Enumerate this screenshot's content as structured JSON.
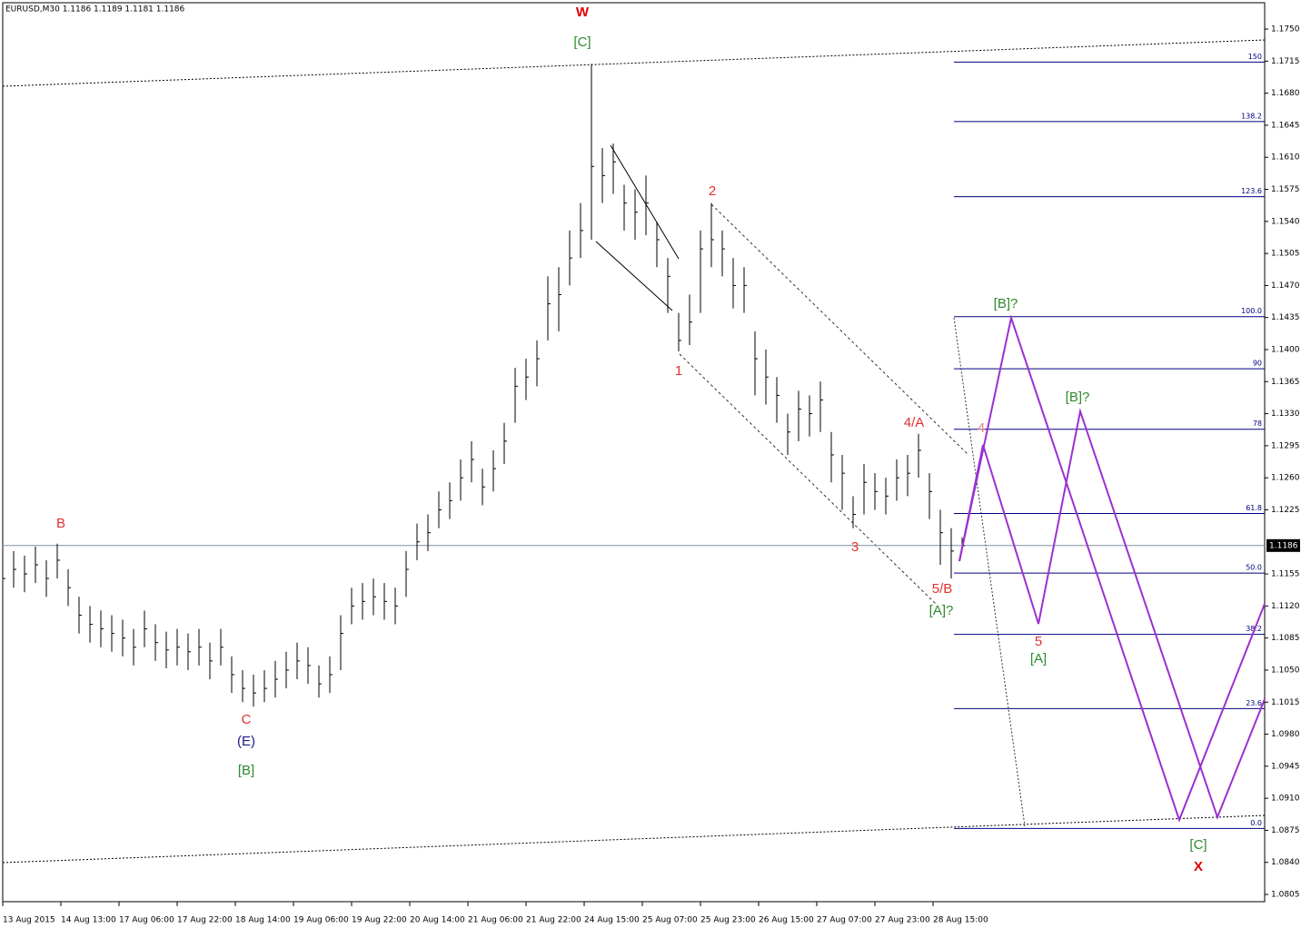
{
  "chart_data": {
    "type": "ohlc",
    "title": "EURUSD,M30  1.1186 1.1189 1.1181 1.1186",
    "color": "#000000",
    "background": "#ffffff",
    "xlim": [
      0,
      694.5
    ],
    "ylim": [
      1.07971,
      1.17778
    ],
    "xticks": [
      {
        "value": 0,
        "label": "13 Aug 2015"
      },
      {
        "value": 32,
        "label": "14 Aug 13:00"
      },
      {
        "value": 64,
        "label": "17 Aug 06:00"
      },
      {
        "value": 96,
        "label": "17 Aug 22:00"
      },
      {
        "value": 128,
        "label": "18 Aug 14:00"
      },
      {
        "value": 160,
        "label": "19 Aug 06:00"
      },
      {
        "value": 192,
        "label": "19 Aug 22:00"
      },
      {
        "value": 224,
        "label": "20 Aug 14:00"
      },
      {
        "value": 256,
        "label": "21 Aug 06:00"
      },
      {
        "value": 288,
        "label": "21 Aug 22:00"
      },
      {
        "value": 320,
        "label": "24 Aug 15:00"
      },
      {
        "value": 352,
        "label": "25 Aug 07:00"
      },
      {
        "value": 384,
        "label": "25 Aug 23:00"
      },
      {
        "value": 416,
        "label": "26 Aug 15:00"
      },
      {
        "value": 448,
        "label": "27 Aug 07:00"
      },
      {
        "value": 480,
        "label": "27 Aug 23:00"
      },
      {
        "value": 512,
        "label": "28 Aug 15:00"
      }
    ],
    "yticks": [
      {
        "value": 1.175,
        "label": "1.1750"
      },
      {
        "value": 1.1715,
        "label": "1.1715"
      },
      {
        "value": 1.168,
        "label": "1.1680"
      },
      {
        "value": 1.1645,
        "label": "1.1645"
      },
      {
        "value": 1.161,
        "label": "1.1610"
      },
      {
        "value": 1.1575,
        "label": "1.1575"
      },
      {
        "value": 1.154,
        "label": "1.1540"
      },
      {
        "value": 1.1505,
        "label": "1.1505"
      },
      {
        "value": 1.147,
        "label": "1.1470"
      },
      {
        "value": 1.1435,
        "label": "1.1435"
      },
      {
        "value": 1.14,
        "label": "1.1400"
      },
      {
        "value": 1.1365,
        "label": "1.1365"
      },
      {
        "value": 1.133,
        "label": "1.1330"
      },
      {
        "value": 1.1295,
        "label": "1.1295"
      },
      {
        "value": 1.126,
        "label": "1.1260"
      },
      {
        "value": 1.1225,
        "label": "1.1225"
      },
      {
        "value": 1.1155,
        "label": "1.1155"
      },
      {
        "value": 1.112,
        "label": "1.1120"
      },
      {
        "value": 1.1085,
        "label": "1.1085"
      },
      {
        "value": 1.105,
        "label": "1.1050"
      },
      {
        "value": 1.1015,
        "label": "1.1015"
      },
      {
        "value": 1.098,
        "label": "1.0980"
      },
      {
        "value": 1.0945,
        "label": "1.0945"
      },
      {
        "value": 1.091,
        "label": "1.0910"
      },
      {
        "value": 1.0875,
        "label": "1.0875"
      },
      {
        "value": 1.084,
        "label": "1.0840"
      },
      {
        "value": 1.0805,
        "label": "1.0805"
      }
    ],
    "last_price": 1.1186,
    "x": [
      0,
      6,
      12,
      18,
      24,
      30,
      36,
      42,
      48,
      54,
      60,
      66,
      72,
      78,
      84,
      90,
      96,
      102,
      108,
      114,
      120,
      126,
      132,
      138,
      144,
      150,
      156,
      162,
      168,
      174,
      180,
      186,
      192,
      198,
      204,
      210,
      216,
      222,
      228,
      234,
      240,
      246,
      252,
      258,
      264,
      270,
      276,
      282,
      288,
      294,
      300,
      306,
      312,
      318,
      324,
      330,
      336,
      342,
      348,
      354,
      360,
      366,
      372,
      378,
      384,
      390,
      396,
      402,
      408,
      414,
      420,
      426,
      432,
      438,
      444,
      450,
      456,
      462,
      468,
      474,
      480,
      486,
      492,
      498,
      504,
      510,
      516,
      522,
      528
    ],
    "high": [
      1.117,
      1.118,
      1.1175,
      1.1185,
      1.117,
      1.1188,
      1.116,
      1.113,
      1.112,
      1.1115,
      1.111,
      1.1105,
      1.1095,
      1.1115,
      1.11,
      1.1092,
      1.1095,
      1.109,
      1.1095,
      1.108,
      1.1095,
      1.1065,
      1.105,
      1.1045,
      1.105,
      1.106,
      1.107,
      1.108,
      1.1075,
      1.1055,
      1.1065,
      1.111,
      1.114,
      1.1145,
      1.115,
      1.1145,
      1.114,
      1.118,
      1.121,
      1.122,
      1.1245,
      1.1255,
      1.128,
      1.13,
      1.127,
      1.129,
      1.132,
      1.138,
      1.139,
      1.141,
      1.148,
      1.149,
      1.153,
      1.156,
      1.1712,
      1.162,
      1.1625,
      1.158,
      1.1575,
      1.159,
      1.154,
      1.15,
      1.144,
      1.146,
      1.153,
      1.156,
      1.153,
      1.15,
      1.149,
      1.142,
      1.14,
      1.137,
      1.133,
      1.1355,
      1.135,
      1.1365,
      1.131,
      1.1285,
      1.124,
      1.1275,
      1.1265,
      1.126,
      1.128,
      1.1285,
      1.1308,
      1.1265,
      1.1225,
      1.1205,
      1.1195
    ],
    "low": [
      1.113,
      1.114,
      1.1135,
      1.1145,
      1.113,
      1.115,
      1.112,
      1.109,
      1.108,
      1.1075,
      1.107,
      1.1065,
      1.1055,
      1.1075,
      1.106,
      1.1052,
      1.1055,
      1.105,
      1.1055,
      1.104,
      1.1055,
      1.1025,
      1.1015,
      1.101,
      1.1015,
      1.102,
      1.103,
      1.104,
      1.1035,
      1.102,
      1.1025,
      1.105,
      1.11,
      1.1105,
      1.111,
      1.1105,
      1.11,
      1.113,
      1.117,
      1.118,
      1.1205,
      1.1215,
      1.1235,
      1.1255,
      1.123,
      1.1245,
      1.1275,
      1.132,
      1.1345,
      1.136,
      1.141,
      1.142,
      1.147,
      1.15,
      1.152,
      1.156,
      1.157,
      1.153,
      1.152,
      1.1525,
      1.149,
      1.144,
      1.1398,
      1.1405,
      1.144,
      1.149,
      1.148,
      1.1445,
      1.144,
      1.135,
      1.134,
      1.132,
      1.1285,
      1.13,
      1.1305,
      1.131,
      1.1255,
      1.1225,
      1.1205,
      1.122,
      1.1225,
      1.122,
      1.1235,
      1.124,
      1.126,
      1.1215,
      1.1165,
      1.115,
      1.1181
    ],
    "close": [
      1.115,
      1.116,
      1.1155,
      1.1165,
      1.115,
      1.117,
      1.114,
      1.111,
      1.11,
      1.1095,
      1.109,
      1.1085,
      1.1075,
      1.1095,
      1.108,
      1.1072,
      1.1075,
      1.107,
      1.1075,
      1.106,
      1.1075,
      1.1045,
      1.103,
      1.1025,
      1.103,
      1.104,
      1.105,
      1.106,
      1.1055,
      1.1035,
      1.1045,
      1.109,
      1.112,
      1.1125,
      1.113,
      1.1125,
      1.112,
      1.116,
      1.119,
      1.12,
      1.1225,
      1.1235,
      1.126,
      1.128,
      1.125,
      1.127,
      1.13,
      1.136,
      1.137,
      1.139,
      1.145,
      1.146,
      1.15,
      1.153,
      1.16,
      1.159,
      1.1605,
      1.156,
      1.155,
      1.156,
      1.152,
      1.148,
      1.141,
      1.143,
      1.151,
      1.152,
      1.151,
      1.147,
      1.147,
      1.139,
      1.137,
      1.135,
      1.131,
      1.1335,
      1.133,
      1.1345,
      1.1285,
      1.1265,
      1.122,
      1.1255,
      1.1245,
      1.124,
      1.126,
      1.1265,
      1.129,
      1.1245,
      1.12,
      1.118,
      1.1186
    ],
    "fib_color": "#000080",
    "fib_levels": [
      {
        "label": "150",
        "price": 1.1714
      },
      {
        "label": "138.2",
        "price": 1.1649
      },
      {
        "label": "123.6",
        "price": 1.1567
      },
      {
        "label": "100.0",
        "price": 1.1436
      },
      {
        "label": "90",
        "price": 1.1379
      },
      {
        "label": "78",
        "price": 1.1313
      },
      {
        "label": "61.8",
        "price": 1.1221
      },
      {
        "label": "50.0",
        "price": 1.1156
      },
      {
        "label": "38.2",
        "price": 1.1089
      },
      {
        "label": "23.6",
        "price": 1.1008
      },
      {
        "label": "0.0",
        "price": 1.0877
      }
    ],
    "annotations": [
      {
        "text": "W",
        "color": "#e00000"
      },
      {
        "text": "[C]",
        "color": "#2e8b2e"
      },
      {
        "text": "B",
        "color": "#e03030"
      },
      {
        "text": "C",
        "color": "#e03030"
      },
      {
        "text": "(E)",
        "color": "#1a1a8c"
      },
      {
        "text": "[B]",
        "color": "#2e8b2e"
      },
      {
        "text": "1",
        "color": "#e03030"
      },
      {
        "text": "2",
        "color": "#e03030"
      },
      {
        "text": "3",
        "color": "#e03030"
      },
      {
        "text": "4/A",
        "color": "#e03030"
      },
      {
        "text": "5/B",
        "color": "#e03030"
      },
      {
        "text": "[A]?",
        "color": "#2e8b2e"
      },
      {
        "text": "[B]?",
        "color": "#2e8b2e"
      },
      {
        "text": "4",
        "color": "#e08080"
      },
      {
        "text": "[B]?",
        "color": "#2e8b2e"
      },
      {
        "text": "5",
        "color": "#e03030"
      },
      {
        "text": "[A]",
        "color": "#2e8b2e"
      },
      {
        "text": "[C]",
        "color": "#2e8b2e"
      },
      {
        "text": "X",
        "color": "#e00000"
      }
    ],
    "projection_color": "#9b30d0"
  }
}
